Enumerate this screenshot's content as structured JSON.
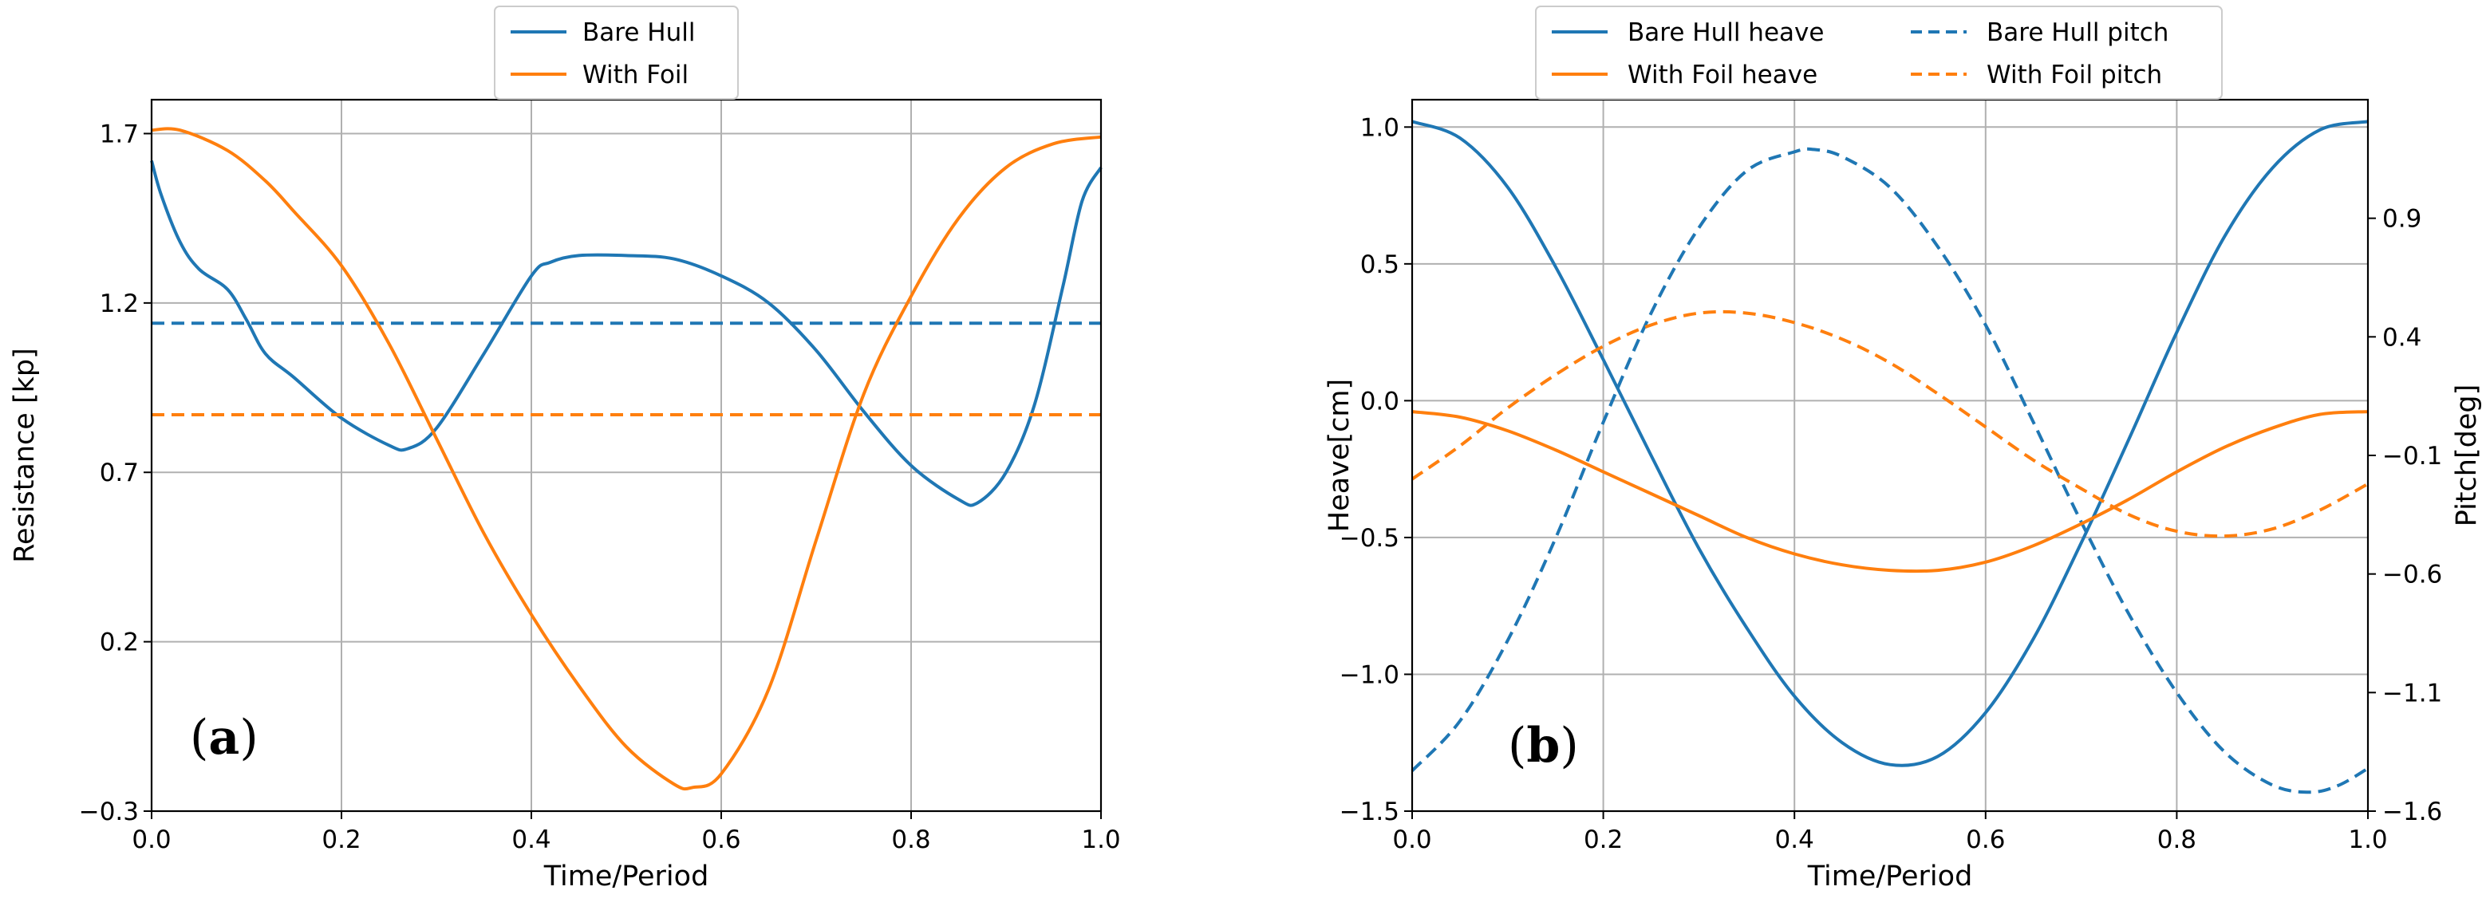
{
  "colors": {
    "bare_hull": "#1f77b4",
    "with_foil": "#ff7f0e"
  },
  "chart_data": [
    {
      "type": "line",
      "panel_label": "a",
      "xlabel": "Time/Period",
      "ylabel": "Resistance [kp]",
      "xlim": [
        0.0,
        1.0
      ],
      "ylim": [
        -0.3,
        1.8
      ],
      "x_ticks": [
        0.0,
        0.2,
        0.4,
        0.6,
        0.8,
        1.0
      ],
      "x_tick_labels": [
        "0.0",
        "0.2",
        "0.4",
        "0.6",
        "0.8",
        "1.0"
      ],
      "y_ticks": [
        -0.3,
        0.2,
        0.7,
        1.2,
        1.7
      ],
      "y_tick_labels": [
        "−0.3",
        "0.2",
        "0.7",
        "1.2",
        "1.7"
      ],
      "grid": true,
      "legend_position": "top-center",
      "legend": [
        "Bare Hull",
        "With Foil"
      ],
      "series": [
        {
          "name": "Bare Hull",
          "color": "#1f77b4",
          "style": "solid",
          "x": [
            0.0,
            0.01,
            0.03,
            0.05,
            0.08,
            0.1,
            0.12,
            0.15,
            0.2,
            0.25,
            0.27,
            0.3,
            0.35,
            0.4,
            0.42,
            0.45,
            0.5,
            0.55,
            0.6,
            0.65,
            0.7,
            0.75,
            0.8,
            0.85,
            0.87,
            0.9,
            0.93,
            0.96,
            0.98,
            1.0
          ],
          "y": [
            1.62,
            1.52,
            1.38,
            1.3,
            1.24,
            1.15,
            1.05,
            0.98,
            0.86,
            0.78,
            0.77,
            0.83,
            1.05,
            1.28,
            1.32,
            1.34,
            1.34,
            1.33,
            1.28,
            1.2,
            1.06,
            0.88,
            0.72,
            0.62,
            0.61,
            0.7,
            0.9,
            1.25,
            1.5,
            1.6
          ]
        },
        {
          "name": "Bare Hull mean",
          "color": "#1f77b4",
          "style": "dashed",
          "x": [
            0.0,
            1.0
          ],
          "y": [
            1.14,
            1.14
          ]
        },
        {
          "name": "With Foil",
          "color": "#ff7f0e",
          "style": "solid",
          "x": [
            0.0,
            0.03,
            0.08,
            0.12,
            0.15,
            0.2,
            0.25,
            0.3,
            0.35,
            0.4,
            0.45,
            0.5,
            0.55,
            0.57,
            0.6,
            0.65,
            0.7,
            0.75,
            0.8,
            0.85,
            0.9,
            0.95,
            1.0
          ],
          "y": [
            1.71,
            1.71,
            1.65,
            1.56,
            1.47,
            1.31,
            1.08,
            0.8,
            0.52,
            0.28,
            0.07,
            -0.11,
            -0.22,
            -0.23,
            -0.19,
            0.06,
            0.5,
            0.93,
            1.22,
            1.45,
            1.6,
            1.67,
            1.69
          ]
        },
        {
          "name": "With Foil mean",
          "color": "#ff7f0e",
          "style": "dashed",
          "x": [
            0.0,
            1.0
          ],
          "y": [
            0.87,
            0.87
          ]
        }
      ]
    },
    {
      "type": "line",
      "panel_label": "b",
      "xlabel": "Time/Period",
      "ylabel": "Heave[cm]",
      "y2label": "Pitch[deg]",
      "xlim": [
        0.0,
        1.0
      ],
      "ylim": [
        -1.5,
        1.1
      ],
      "y2lim": [
        -1.6,
        1.4
      ],
      "x_ticks": [
        0.0,
        0.2,
        0.4,
        0.6,
        0.8,
        1.0
      ],
      "x_tick_labels": [
        "0.0",
        "0.2",
        "0.4",
        "0.6",
        "0.8",
        "1.0"
      ],
      "y_ticks": [
        -1.5,
        -1.0,
        -0.5,
        0.0,
        0.5,
        1.0
      ],
      "y_tick_labels": [
        "−1.5",
        "−1.0",
        "−0.5",
        "0.0",
        "0.5",
        "1.0"
      ],
      "y2_ticks": [
        -1.6,
        -1.1,
        -0.6,
        -0.1,
        0.4,
        0.9
      ],
      "y2_tick_labels": [
        "−1.6",
        "−1.1",
        "−0.6",
        "−0.1",
        "0.4",
        "0.9"
      ],
      "grid": true,
      "legend_position": "top-center",
      "legend": [
        "Bare Hull heave",
        "Bare Hull pitch",
        "With Foil heave",
        "With Foil pitch"
      ],
      "series": [
        {
          "name": "Bare Hull heave",
          "axis": "left",
          "color": "#1f77b4",
          "style": "solid",
          "x": [
            0.0,
            0.05,
            0.1,
            0.15,
            0.2,
            0.25,
            0.3,
            0.35,
            0.4,
            0.45,
            0.5,
            0.55,
            0.6,
            0.65,
            0.7,
            0.75,
            0.8,
            0.85,
            0.9,
            0.95,
            1.0
          ],
          "y": [
            1.02,
            0.96,
            0.78,
            0.49,
            0.15,
            -0.2,
            -0.54,
            -0.83,
            -1.08,
            -1.25,
            -1.33,
            -1.3,
            -1.14,
            -0.87,
            -0.52,
            -0.14,
            0.25,
            0.6,
            0.85,
            0.99,
            1.02
          ]
        },
        {
          "name": "Bare Hull pitch",
          "axis": "right",
          "color": "#1f77b4",
          "style": "dashed",
          "x": [
            0.0,
            0.05,
            0.1,
            0.15,
            0.2,
            0.25,
            0.3,
            0.35,
            0.4,
            0.42,
            0.45,
            0.5,
            0.55,
            0.6,
            0.65,
            0.7,
            0.75,
            0.8,
            0.85,
            0.9,
            0.94,
            0.97,
            1.0
          ],
          "y": [
            -1.43,
            -1.22,
            -0.88,
            -0.45,
            0.04,
            0.5,
            0.86,
            1.1,
            1.18,
            1.19,
            1.16,
            1.03,
            0.78,
            0.45,
            0.04,
            -0.38,
            -0.77,
            -1.1,
            -1.35,
            -1.49,
            -1.52,
            -1.49,
            -1.42
          ]
        },
        {
          "name": "With Foil heave",
          "axis": "left",
          "color": "#ff7f0e",
          "style": "solid",
          "x": [
            0.0,
            0.05,
            0.1,
            0.15,
            0.2,
            0.25,
            0.3,
            0.35,
            0.4,
            0.45,
            0.5,
            0.55,
            0.6,
            0.65,
            0.7,
            0.75,
            0.8,
            0.85,
            0.9,
            0.95,
            1.0
          ],
          "y": [
            -0.04,
            -0.06,
            -0.11,
            -0.18,
            -0.26,
            -0.34,
            -0.42,
            -0.5,
            -0.56,
            -0.6,
            -0.62,
            -0.62,
            -0.59,
            -0.53,
            -0.45,
            -0.36,
            -0.26,
            -0.17,
            -0.1,
            -0.05,
            -0.04
          ]
        },
        {
          "name": "With Foil pitch",
          "axis": "right",
          "color": "#ff7f0e",
          "style": "dashed",
          "x": [
            0.0,
            0.05,
            0.1,
            0.15,
            0.2,
            0.25,
            0.3,
            0.35,
            0.4,
            0.45,
            0.5,
            0.55,
            0.6,
            0.65,
            0.7,
            0.75,
            0.8,
            0.85,
            0.9,
            0.95,
            1.0
          ],
          "y": [
            -0.2,
            -0.06,
            0.1,
            0.24,
            0.36,
            0.45,
            0.5,
            0.5,
            0.46,
            0.39,
            0.29,
            0.16,
            0.02,
            -0.12,
            -0.24,
            -0.35,
            -0.42,
            -0.44,
            -0.41,
            -0.33,
            -0.22
          ]
        }
      ]
    }
  ]
}
